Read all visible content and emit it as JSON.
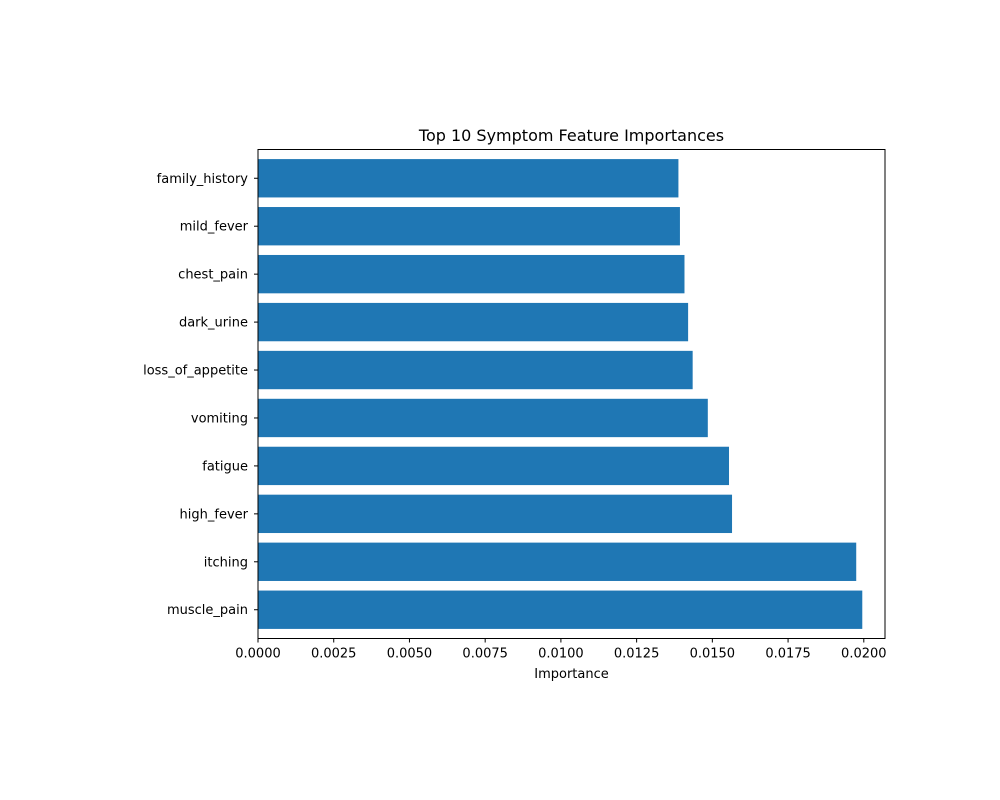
{
  "chart_data": {
    "type": "bar",
    "orientation": "horizontal",
    "title": "Top 10 Symptom Feature Importances",
    "xlabel": "Importance",
    "ylabel": "",
    "categories": [
      "muscle_pain",
      "itching",
      "high_fever",
      "fatigue",
      "vomiting",
      "loss_of_appetite",
      "dark_urine",
      "chest_pain",
      "mild_fever",
      "family_history"
    ],
    "values": [
      0.01995,
      0.01975,
      0.01565,
      0.01555,
      0.01485,
      0.01435,
      0.0142,
      0.01408,
      0.01393,
      0.01388
    ],
    "xlim": [
      0.0,
      0.0207
    ],
    "xticks": [
      0.0,
      0.0025,
      0.005,
      0.0075,
      0.01,
      0.0125,
      0.015,
      0.0175,
      0.02
    ],
    "xtick_labels": [
      "0.0000",
      "0.0025",
      "0.0050",
      "0.0075",
      "0.0100",
      "0.0125",
      "0.0150",
      "0.0175",
      "0.0200"
    ],
    "bar_color": "#1f77b4",
    "grid": false,
    "legend": "none"
  }
}
